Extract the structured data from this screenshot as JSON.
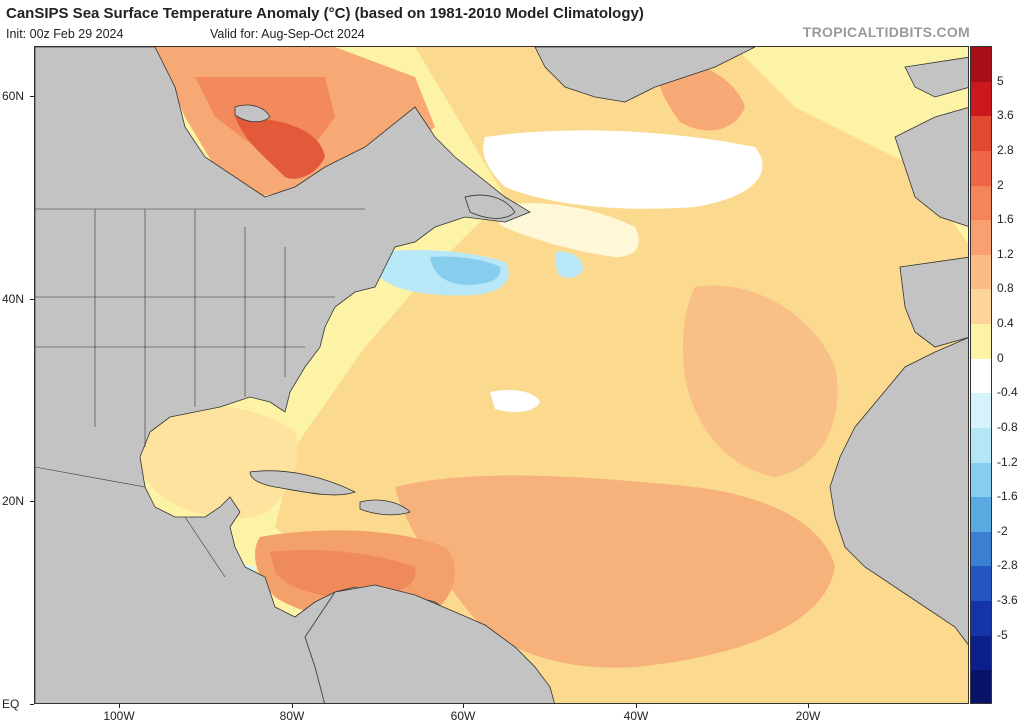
{
  "header": {
    "title": "CanSIPS Sea Surface Temperature Anomaly (°C) (based on 1981-2010 Model Climatology)",
    "init": "Init: 00z Feb 29 2024",
    "valid": "Valid for: Aug-Sep-Oct 2024",
    "brand": "TROPICALTIDBITS.COM"
  },
  "map": {
    "lat_labels": [
      "60N",
      "40N",
      "20N",
      "EQ"
    ],
    "lon_labels": [
      "100W",
      "80W",
      "60W",
      "40W",
      "20W"
    ],
    "land_color": "#c3c3c3",
    "ocean_base_color": "#fdf3a6"
  },
  "colorbar": {
    "labels": [
      "5",
      "3.6",
      "2.8",
      "2",
      "1.6",
      "1.2",
      "0.8",
      "0.4",
      "0",
      "-0.4",
      "-0.8",
      "-1.2",
      "-1.6",
      "-2",
      "-2.8",
      "-3.6",
      "-5"
    ],
    "colors": [
      "#a50f15",
      "#cb181d",
      "#e34a33",
      "#ef6548",
      "#f4845a",
      "#f8a070",
      "#fbbc84",
      "#fdd49a",
      "#fdf3a6",
      "#ffffff",
      "#d6f3fb",
      "#b3e6f7",
      "#86cdee",
      "#5aa9e0",
      "#3a7fd0",
      "#2356c0",
      "#1434a8",
      "#0c1f8a",
      "#081266"
    ]
  }
}
